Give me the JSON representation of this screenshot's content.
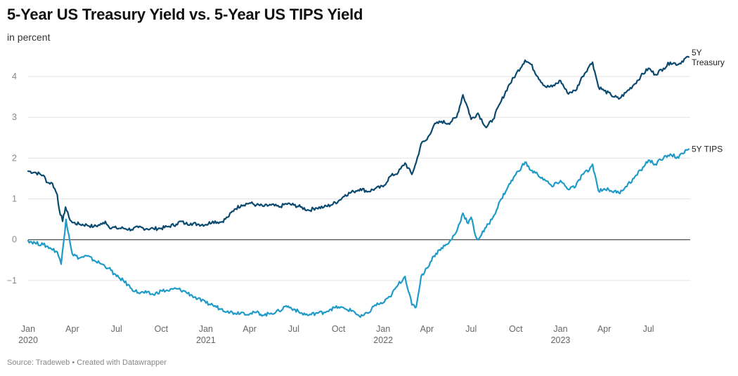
{
  "title": "5-Year US Treasury Yield vs. 5-Year US TIPS Yield",
  "subtitle": "in percent",
  "footer": "Source: Tradeweb • Created with Datawrapper",
  "chart_data": {
    "type": "line",
    "title": "5-Year US Treasury Yield vs. 5-Year US TIPS Yield",
    "ylabel": "in percent",
    "ylim": [
      -2,
      4.5
    ],
    "yticks": [
      {
        "value": -1,
        "label": "−1"
      },
      {
        "value": 0,
        "label": "0"
      },
      {
        "value": 1,
        "label": "1"
      },
      {
        "value": 2,
        "label": "2"
      },
      {
        "value": 3,
        "label": "3"
      },
      {
        "value": 4,
        "label": "4"
      }
    ],
    "xlim": [
      "2020-01-01",
      "2023-09-25"
    ],
    "xticks": [
      {
        "date": "2020-01-01",
        "label": "Jan",
        "year": "2020"
      },
      {
        "date": "2020-04-01",
        "label": "Apr"
      },
      {
        "date": "2020-07-01",
        "label": "Jul"
      },
      {
        "date": "2020-10-01",
        "label": "Oct"
      },
      {
        "date": "2021-01-01",
        "label": "Jan",
        "year": "2021"
      },
      {
        "date": "2021-04-01",
        "label": "Apr"
      },
      {
        "date": "2021-07-01",
        "label": "Jul"
      },
      {
        "date": "2021-10-01",
        "label": "Oct"
      },
      {
        "date": "2022-01-01",
        "label": "Jan",
        "year": "2022"
      },
      {
        "date": "2022-04-01",
        "label": "Apr"
      },
      {
        "date": "2022-07-01",
        "label": "Jul"
      },
      {
        "date": "2022-10-01",
        "label": "Oct"
      },
      {
        "date": "2023-01-01",
        "label": "Jan",
        "year": "2023"
      },
      {
        "date": "2023-04-01",
        "label": "Apr"
      },
      {
        "date": "2023-07-01",
        "label": "Jul"
      }
    ],
    "grid": true,
    "zero_line": true,
    "series": [
      {
        "name": "5Y Treasury",
        "label_lines": [
          "5Y",
          "Treasury"
        ],
        "color": "#0b4a6f",
        "points": [
          [
            "2020-01-01",
            1.68
          ],
          [
            "2020-01-15",
            1.65
          ],
          [
            "2020-02-01",
            1.58
          ],
          [
            "2020-02-10",
            1.4
          ],
          [
            "2020-02-20",
            1.38
          ],
          [
            "2020-03-01",
            1.1
          ],
          [
            "2020-03-05",
            0.75
          ],
          [
            "2020-03-12",
            0.45
          ],
          [
            "2020-03-18",
            0.8
          ],
          [
            "2020-03-25",
            0.55
          ],
          [
            "2020-04-01",
            0.42
          ],
          [
            "2020-04-15",
            0.38
          ],
          [
            "2020-05-01",
            0.36
          ],
          [
            "2020-05-15",
            0.32
          ],
          [
            "2020-06-01",
            0.38
          ],
          [
            "2020-06-08",
            0.45
          ],
          [
            "2020-06-15",
            0.32
          ],
          [
            "2020-07-01",
            0.28
          ],
          [
            "2020-07-15",
            0.28
          ],
          [
            "2020-08-01",
            0.25
          ],
          [
            "2020-08-15",
            0.3
          ],
          [
            "2020-09-01",
            0.27
          ],
          [
            "2020-09-15",
            0.27
          ],
          [
            "2020-10-01",
            0.28
          ],
          [
            "2020-10-15",
            0.32
          ],
          [
            "2020-11-01",
            0.38
          ],
          [
            "2020-11-10",
            0.45
          ],
          [
            "2020-11-20",
            0.39
          ],
          [
            "2020-12-01",
            0.4
          ],
          [
            "2020-12-15",
            0.38
          ],
          [
            "2021-01-01",
            0.37
          ],
          [
            "2021-01-15",
            0.45
          ],
          [
            "2021-02-01",
            0.43
          ],
          [
            "2021-02-15",
            0.55
          ],
          [
            "2021-03-01",
            0.75
          ],
          [
            "2021-03-15",
            0.85
          ],
          [
            "2021-04-01",
            0.9
          ],
          [
            "2021-04-15",
            0.85
          ],
          [
            "2021-05-01",
            0.82
          ],
          [
            "2021-05-15",
            0.85
          ],
          [
            "2021-06-01",
            0.8
          ],
          [
            "2021-06-15",
            0.88
          ],
          [
            "2021-07-01",
            0.85
          ],
          [
            "2021-07-15",
            0.8
          ],
          [
            "2021-08-01",
            0.72
          ],
          [
            "2021-08-15",
            0.78
          ],
          [
            "2021-09-01",
            0.8
          ],
          [
            "2021-09-15",
            0.85
          ],
          [
            "2021-10-01",
            0.95
          ],
          [
            "2021-10-15",
            1.1
          ],
          [
            "2021-11-01",
            1.18
          ],
          [
            "2021-11-15",
            1.25
          ],
          [
            "2021-12-01",
            1.18
          ],
          [
            "2021-12-15",
            1.25
          ],
          [
            "2022-01-01",
            1.3
          ],
          [
            "2022-01-15",
            1.55
          ],
          [
            "2022-02-01",
            1.65
          ],
          [
            "2022-02-15",
            1.88
          ],
          [
            "2022-03-01",
            1.6
          ],
          [
            "2022-03-10",
            1.9
          ],
          [
            "2022-03-20",
            2.35
          ],
          [
            "2022-04-01",
            2.45
          ],
          [
            "2022-04-15",
            2.8
          ],
          [
            "2022-05-01",
            2.9
          ],
          [
            "2022-05-15",
            2.85
          ],
          [
            "2022-06-01",
            3.0
          ],
          [
            "2022-06-14",
            3.55
          ],
          [
            "2022-06-25",
            3.2
          ],
          [
            "2022-07-01",
            2.95
          ],
          [
            "2022-07-15",
            3.1
          ],
          [
            "2022-08-01",
            2.75
          ],
          [
            "2022-08-15",
            2.95
          ],
          [
            "2022-09-01",
            3.4
          ],
          [
            "2022-09-15",
            3.75
          ],
          [
            "2022-10-01",
            4.05
          ],
          [
            "2022-10-20",
            4.4
          ],
          [
            "2022-11-01",
            4.3
          ],
          [
            "2022-11-15",
            4.0
          ],
          [
            "2022-12-01",
            3.75
          ],
          [
            "2022-12-15",
            3.75
          ],
          [
            "2023-01-01",
            3.9
          ],
          [
            "2023-01-15",
            3.6
          ],
          [
            "2023-02-01",
            3.65
          ],
          [
            "2023-02-15",
            4.0
          ],
          [
            "2023-03-01",
            4.25
          ],
          [
            "2023-03-08",
            4.35
          ],
          [
            "2023-03-20",
            3.75
          ],
          [
            "2023-04-01",
            3.65
          ],
          [
            "2023-04-15",
            3.55
          ],
          [
            "2023-05-01",
            3.45
          ],
          [
            "2023-05-15",
            3.6
          ],
          [
            "2023-06-01",
            3.8
          ],
          [
            "2023-06-15",
            4.0
          ],
          [
            "2023-07-01",
            4.2
          ],
          [
            "2023-07-15",
            4.05
          ],
          [
            "2023-08-01",
            4.2
          ],
          [
            "2023-08-15",
            4.35
          ],
          [
            "2023-09-01",
            4.3
          ],
          [
            "2023-09-15",
            4.45
          ],
          [
            "2023-09-22",
            4.48
          ]
        ]
      },
      {
        "name": "5Y TIPS",
        "label_lines": [
          "5Y TIPS"
        ],
        "color": "#1f9bc9",
        "points": [
          [
            "2020-01-01",
            -0.02
          ],
          [
            "2020-01-15",
            -0.08
          ],
          [
            "2020-02-01",
            -0.12
          ],
          [
            "2020-02-15",
            -0.2
          ],
          [
            "2020-03-01",
            -0.3
          ],
          [
            "2020-03-09",
            -0.6
          ],
          [
            "2020-03-19",
            0.5
          ],
          [
            "2020-03-25",
            0.1
          ],
          [
            "2020-04-01",
            -0.35
          ],
          [
            "2020-04-15",
            -0.45
          ],
          [
            "2020-05-01",
            -0.4
          ],
          [
            "2020-05-15",
            -0.5
          ],
          [
            "2020-06-01",
            -0.6
          ],
          [
            "2020-06-15",
            -0.7
          ],
          [
            "2020-07-01",
            -0.9
          ],
          [
            "2020-07-15",
            -1.0
          ],
          [
            "2020-08-01",
            -1.2
          ],
          [
            "2020-08-15",
            -1.3
          ],
          [
            "2020-09-01",
            -1.3
          ],
          [
            "2020-09-15",
            -1.35
          ],
          [
            "2020-10-01",
            -1.25
          ],
          [
            "2020-10-15",
            -1.25
          ],
          [
            "2020-11-01",
            -1.2
          ],
          [
            "2020-11-15",
            -1.25
          ],
          [
            "2020-12-01",
            -1.35
          ],
          [
            "2020-12-15",
            -1.45
          ],
          [
            "2021-01-01",
            -1.55
          ],
          [
            "2021-01-15",
            -1.6
          ],
          [
            "2021-02-01",
            -1.7
          ],
          [
            "2021-02-15",
            -1.75
          ],
          [
            "2021-03-01",
            -1.8
          ],
          [
            "2021-03-15",
            -1.78
          ],
          [
            "2021-04-01",
            -1.82
          ],
          [
            "2021-04-15",
            -1.78
          ],
          [
            "2021-05-01",
            -1.85
          ],
          [
            "2021-05-15",
            -1.8
          ],
          [
            "2021-06-01",
            -1.75
          ],
          [
            "2021-06-15",
            -1.62
          ],
          [
            "2021-07-01",
            -1.7
          ],
          [
            "2021-07-15",
            -1.8
          ],
          [
            "2021-08-01",
            -1.85
          ],
          [
            "2021-08-15",
            -1.8
          ],
          [
            "2021-09-01",
            -1.78
          ],
          [
            "2021-09-15",
            -1.7
          ],
          [
            "2021-10-01",
            -1.65
          ],
          [
            "2021-10-15",
            -1.7
          ],
          [
            "2021-11-01",
            -1.75
          ],
          [
            "2021-11-15",
            -1.9
          ],
          [
            "2021-12-01",
            -1.8
          ],
          [
            "2021-12-15",
            -1.6
          ],
          [
            "2022-01-01",
            -1.55
          ],
          [
            "2022-01-15",
            -1.4
          ],
          [
            "2022-02-01",
            -1.1
          ],
          [
            "2022-02-15",
            -0.9
          ],
          [
            "2022-03-01",
            -1.6
          ],
          [
            "2022-03-10",
            -1.65
          ],
          [
            "2022-03-20",
            -0.9
          ],
          [
            "2022-04-01",
            -0.7
          ],
          [
            "2022-04-15",
            -0.4
          ],
          [
            "2022-05-01",
            -0.2
          ],
          [
            "2022-05-15",
            -0.1
          ],
          [
            "2022-06-01",
            0.2
          ],
          [
            "2022-06-14",
            0.65
          ],
          [
            "2022-06-25",
            0.4
          ],
          [
            "2022-07-01",
            0.55
          ],
          [
            "2022-07-10",
            0.1
          ],
          [
            "2022-07-15",
            0.0
          ],
          [
            "2022-08-01",
            0.3
          ],
          [
            "2022-08-15",
            0.55
          ],
          [
            "2022-09-01",
            1.0
          ],
          [
            "2022-09-15",
            1.3
          ],
          [
            "2022-10-01",
            1.6
          ],
          [
            "2022-10-20",
            1.9
          ],
          [
            "2022-11-01",
            1.7
          ],
          [
            "2022-11-15",
            1.6
          ],
          [
            "2022-12-01",
            1.45
          ],
          [
            "2022-12-15",
            1.3
          ],
          [
            "2023-01-01",
            1.45
          ],
          [
            "2023-01-15",
            1.25
          ],
          [
            "2023-02-01",
            1.3
          ],
          [
            "2023-02-15",
            1.6
          ],
          [
            "2023-03-01",
            1.7
          ],
          [
            "2023-03-08",
            1.85
          ],
          [
            "2023-03-20",
            1.2
          ],
          [
            "2023-04-01",
            1.25
          ],
          [
            "2023-04-15",
            1.2
          ],
          [
            "2023-05-01",
            1.15
          ],
          [
            "2023-05-15",
            1.3
          ],
          [
            "2023-06-01",
            1.5
          ],
          [
            "2023-06-15",
            1.7
          ],
          [
            "2023-07-01",
            1.95
          ],
          [
            "2023-07-15",
            1.85
          ],
          [
            "2023-08-01",
            2.0
          ],
          [
            "2023-08-15",
            2.1
          ],
          [
            "2023-09-01",
            2.0
          ],
          [
            "2023-09-15",
            2.2
          ],
          [
            "2023-09-22",
            2.22
          ]
        ]
      }
    ]
  }
}
